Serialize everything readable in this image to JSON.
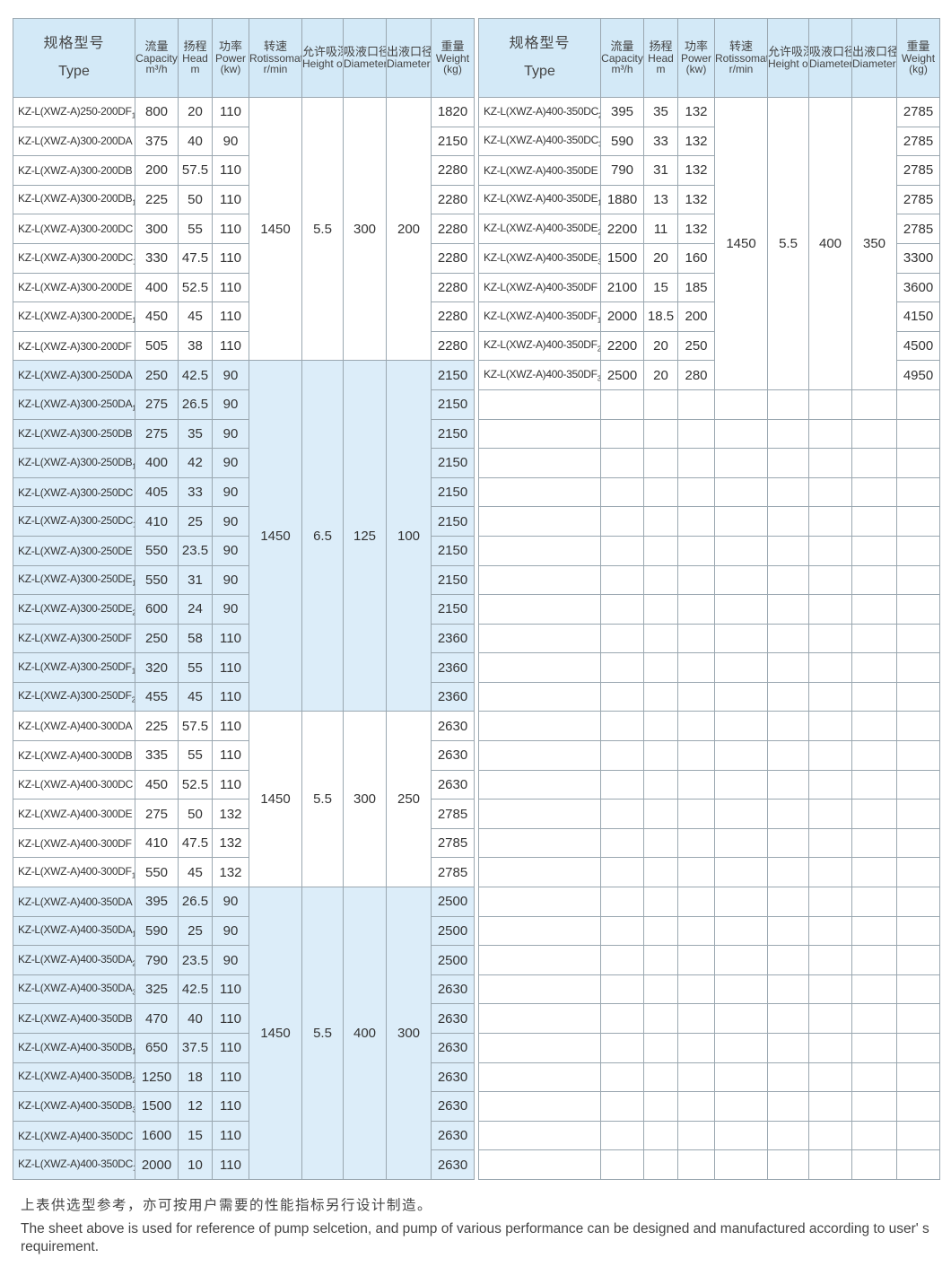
{
  "header": [
    {
      "cn": "规格型号",
      "en": "Type"
    },
    {
      "cn": "流量",
      "en": "Capacity",
      "unit": "m³/h"
    },
    {
      "cn": "扬程",
      "en": "Head",
      "unit": "m"
    },
    {
      "cn": "功率",
      "en": "Power",
      "unit": "(kw)"
    },
    {
      "cn": "转速",
      "en": "Rotissomat Speed",
      "unit": "r/min"
    },
    {
      "cn": "允许吸深",
      "en": "Height of Suciton"
    },
    {
      "cn": "吸液口径",
      "en": "Diameter of Inlet"
    },
    {
      "cn": "出液口径",
      "en": "Diameter of Outlet"
    },
    {
      "cn": "重量",
      "en": "Weight",
      "unit": "(kg)"
    }
  ],
  "left_table": [
    {
      "speed": "1450",
      "suction": "5.5",
      "inlet": "300",
      "outlet": "200",
      "shaded": false,
      "rows": [
        [
          "KZ-L(XWZ-A)250-200DF",
          "1",
          "800",
          "20",
          "110",
          "1820"
        ],
        [
          "KZ-L(XWZ-A)300-200DA",
          "",
          "375",
          "40",
          "90",
          "2150"
        ],
        [
          "KZ-L(XWZ-A)300-200DB",
          "",
          "200",
          "57.5",
          "110",
          "2280"
        ],
        [
          "KZ-L(XWZ-A)300-200DB",
          "1",
          "225",
          "50",
          "110",
          "2280"
        ],
        [
          "KZ-L(XWZ-A)300-200DC",
          "",
          "300",
          "55",
          "110",
          "2280"
        ],
        [
          "KZ-L(XWZ-A)300-200DC",
          "1",
          "330",
          "47.5",
          "110",
          "2280"
        ],
        [
          "KZ-L(XWZ-A)300-200DE",
          "",
          "400",
          "52.5",
          "110",
          "2280"
        ],
        [
          "KZ-L(XWZ-A)300-200DE",
          "1",
          "450",
          "45",
          "110",
          "2280"
        ],
        [
          "KZ-L(XWZ-A)300-200DF",
          "",
          "505",
          "38",
          "110",
          "2280"
        ]
      ]
    },
    {
      "speed": "1450",
      "suction": "6.5",
      "inlet": "125",
      "outlet": "100",
      "shaded": true,
      "rows": [
        [
          "KZ-L(XWZ-A)300-250DA",
          "",
          "250",
          "42.5",
          "90",
          "2150"
        ],
        [
          "KZ-L(XWZ-A)300-250DA",
          "1",
          "275",
          "26.5",
          "90",
          "2150"
        ],
        [
          "KZ-L(XWZ-A)300-250DB",
          "",
          "275",
          "35",
          "90",
          "2150"
        ],
        [
          "KZ-L(XWZ-A)300-250DB",
          "1",
          "400",
          "42",
          "90",
          "2150"
        ],
        [
          "KZ-L(XWZ-A)300-250DC",
          "",
          "405",
          "33",
          "90",
          "2150"
        ],
        [
          "KZ-L(XWZ-A)300-250DC",
          "1",
          "410",
          "25",
          "90",
          "2150"
        ],
        [
          "KZ-L(XWZ-A)300-250DE",
          "",
          "550",
          "23.5",
          "90",
          "2150"
        ],
        [
          "KZ-L(XWZ-A)300-250DE",
          "1",
          "550",
          "31",
          "90",
          "2150"
        ],
        [
          "KZ-L(XWZ-A)300-250DE",
          "2",
          "600",
          "24",
          "90",
          "2150"
        ],
        [
          "KZ-L(XWZ-A)300-250DF",
          "",
          "250",
          "58",
          "110",
          "2360"
        ],
        [
          "KZ-L(XWZ-A)300-250DF",
          "1",
          "320",
          "55",
          "110",
          "2360"
        ],
        [
          "KZ-L(XWZ-A)300-250DF",
          "2",
          "455",
          "45",
          "110",
          "2360"
        ]
      ]
    },
    {
      "speed": "1450",
      "suction": "5.5",
      "inlet": "300",
      "outlet": "250",
      "shaded": false,
      "rows": [
        [
          "KZ-L(XWZ-A)400-300DA",
          "",
          "225",
          "57.5",
          "110",
          "2630"
        ],
        [
          "KZ-L(XWZ-A)400-300DB",
          "",
          "335",
          "55",
          "110",
          "2630"
        ],
        [
          "KZ-L(XWZ-A)400-300DC",
          "",
          "450",
          "52.5",
          "110",
          "2630"
        ],
        [
          "KZ-L(XWZ-A)400-300DE",
          "",
          "275",
          "50",
          "132",
          "2785"
        ],
        [
          "KZ-L(XWZ-A)400-300DF",
          "",
          "410",
          "47.5",
          "132",
          "2785"
        ],
        [
          "KZ-L(XWZ-A)400-300DF",
          "1",
          "550",
          "45",
          "132",
          "2785"
        ]
      ]
    },
    {
      "speed": "1450",
      "suction": "5.5",
      "inlet": "400",
      "outlet": "300",
      "shaded": true,
      "rows": [
        [
          "KZ-L(XWZ-A)400-350DA",
          "",
          "395",
          "26.5",
          "90",
          "2500"
        ],
        [
          "KZ-L(XWZ-A)400-350DA",
          "1",
          "590",
          "25",
          "90",
          "2500"
        ],
        [
          "KZ-L(XWZ-A)400-350DA",
          "2",
          "790",
          "23.5",
          "90",
          "2500"
        ],
        [
          "KZ-L(XWZ-A)400-350DA",
          "3",
          "325",
          "42.5",
          "110",
          "2630"
        ],
        [
          "KZ-L(XWZ-A)400-350DB",
          "",
          "470",
          "40",
          "110",
          "2630"
        ],
        [
          "KZ-L(XWZ-A)400-350DB",
          "1",
          "650",
          "37.5",
          "110",
          "2630"
        ],
        [
          "KZ-L(XWZ-A)400-350DB",
          "2",
          "1250",
          "18",
          "110",
          "2630"
        ],
        [
          "KZ-L(XWZ-A)400-350DB",
          "3",
          "1500",
          "12",
          "110",
          "2630"
        ],
        [
          "KZ-L(XWZ-A)400-350DC",
          "",
          "1600",
          "15",
          "110",
          "2630"
        ],
        [
          "KZ-L(XWZ-A)400-350DC",
          "1",
          "2000",
          "10",
          "110",
          "2630"
        ]
      ]
    }
  ],
  "right_table": [
    {
      "speed": "1450",
      "suction": "5.5",
      "inlet": "400",
      "outlet": "350",
      "shaded": false,
      "rows": [
        [
          "KZ-L(XWZ-A)400-350DC",
          "2",
          "395",
          "35",
          "132",
          "2785"
        ],
        [
          "KZ-L(XWZ-A)400-350DC",
          "3",
          "590",
          "33",
          "132",
          "2785"
        ],
        [
          "KZ-L(XWZ-A)400-350DE",
          "",
          "790",
          "31",
          "132",
          "2785"
        ],
        [
          "KZ-L(XWZ-A)400-350DE",
          "1",
          "1880",
          "13",
          "132",
          "2785"
        ],
        [
          "KZ-L(XWZ-A)400-350DE",
          "2",
          "2200",
          "11",
          "132",
          "2785"
        ],
        [
          "KZ-L(XWZ-A)400-350DE",
          "3",
          "1500",
          "20",
          "160",
          "3300"
        ],
        [
          "KZ-L(XWZ-A)400-350DF",
          "",
          "2100",
          "15",
          "185",
          "3600"
        ],
        [
          "KZ-L(XWZ-A)400-350DF",
          "1",
          "2000",
          "18.5",
          "200",
          "4150"
        ],
        [
          "KZ-L(XWZ-A)400-350DF",
          "2",
          "2200",
          "20",
          "250",
          "4500"
        ],
        [
          "KZ-L(XWZ-A)400-350DF",
          "3",
          "2500",
          "20",
          "280",
          "4950"
        ]
      ]
    }
  ],
  "footer": {
    "cn": "上表供选型参考，亦可按用户需要的性能指标另行设计制造。",
    "en": "The sheet above is used for reference of pump selcetion, and pump of various performance can be designed and manufactured according to user' s requirement."
  }
}
